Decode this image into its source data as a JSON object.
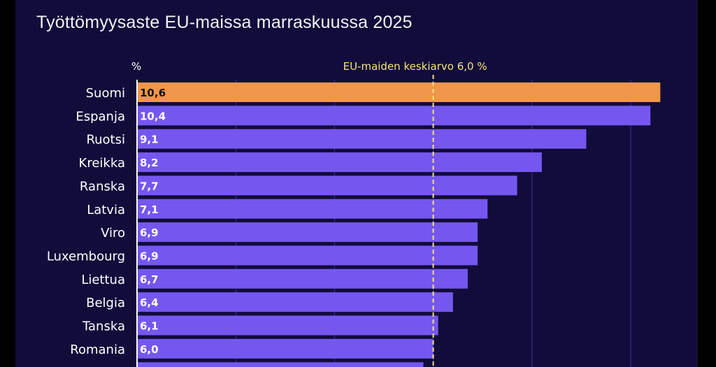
{
  "chart_data": {
    "type": "bar",
    "orientation": "horizontal",
    "title": "Työttömyysaste EU-maissa marraskuussa 2025",
    "unit_label": "%",
    "reference_line": {
      "value": 6.0,
      "label": "EU-maiden keskiarvo 6,0 %",
      "color": "#f5e27a",
      "style": "dashed"
    },
    "categories": [
      "Suomi",
      "Espanja",
      "Ruotsi",
      "Kreikka",
      "Ranska",
      "Latvia",
      "Viro",
      "Luxembourg",
      "Liettua",
      "Belgia",
      "Tanska",
      "Romania",
      ""
    ],
    "values": [
      10.6,
      10.4,
      9.1,
      8.2,
      7.7,
      7.1,
      6.9,
      6.9,
      6.7,
      6.4,
      6.1,
      6.0,
      5.8
    ],
    "value_labels": [
      "10,6",
      "10,4",
      "9,1",
      "8,2",
      "7,7",
      "7,1",
      "6,9",
      "6,9",
      "6,7",
      "6,4",
      "6,1",
      "6,0",
      ""
    ],
    "highlight": "Suomi",
    "colors": {
      "bar": "#7557f0",
      "highlight": "#f0964a",
      "background": "#110c3a",
      "grid": "#3b2f9e"
    },
    "xlim": [
      0,
      10.6
    ],
    "gridlines": [
      2,
      4,
      6,
      8,
      10
    ],
    "grid": true
  }
}
